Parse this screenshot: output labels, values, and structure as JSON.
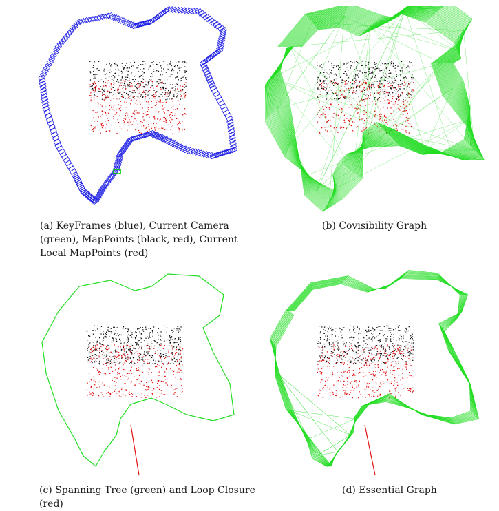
{
  "figure": {
    "panels": [
      {
        "id": "a",
        "caption": "(a) KeyFrames (blue), Current Camera (green), MapPoints (black, red), Current Local MapPoints (red)"
      },
      {
        "id": "b",
        "caption": "(b) Covisibility Graph"
      },
      {
        "id": "c",
        "caption": "(c) Spanning Tree (green) and Loop Closure (red)"
      },
      {
        "id": "d",
        "caption": "(d) Essential Graph"
      }
    ],
    "colors": {
      "keyframes": "#1f1fe6",
      "current_camera": "#00cc00",
      "graph_edges": "#22dd22",
      "map_points_black": "#111111",
      "map_points_red": "#e01010",
      "loop_closure": "#e01010"
    }
  }
}
